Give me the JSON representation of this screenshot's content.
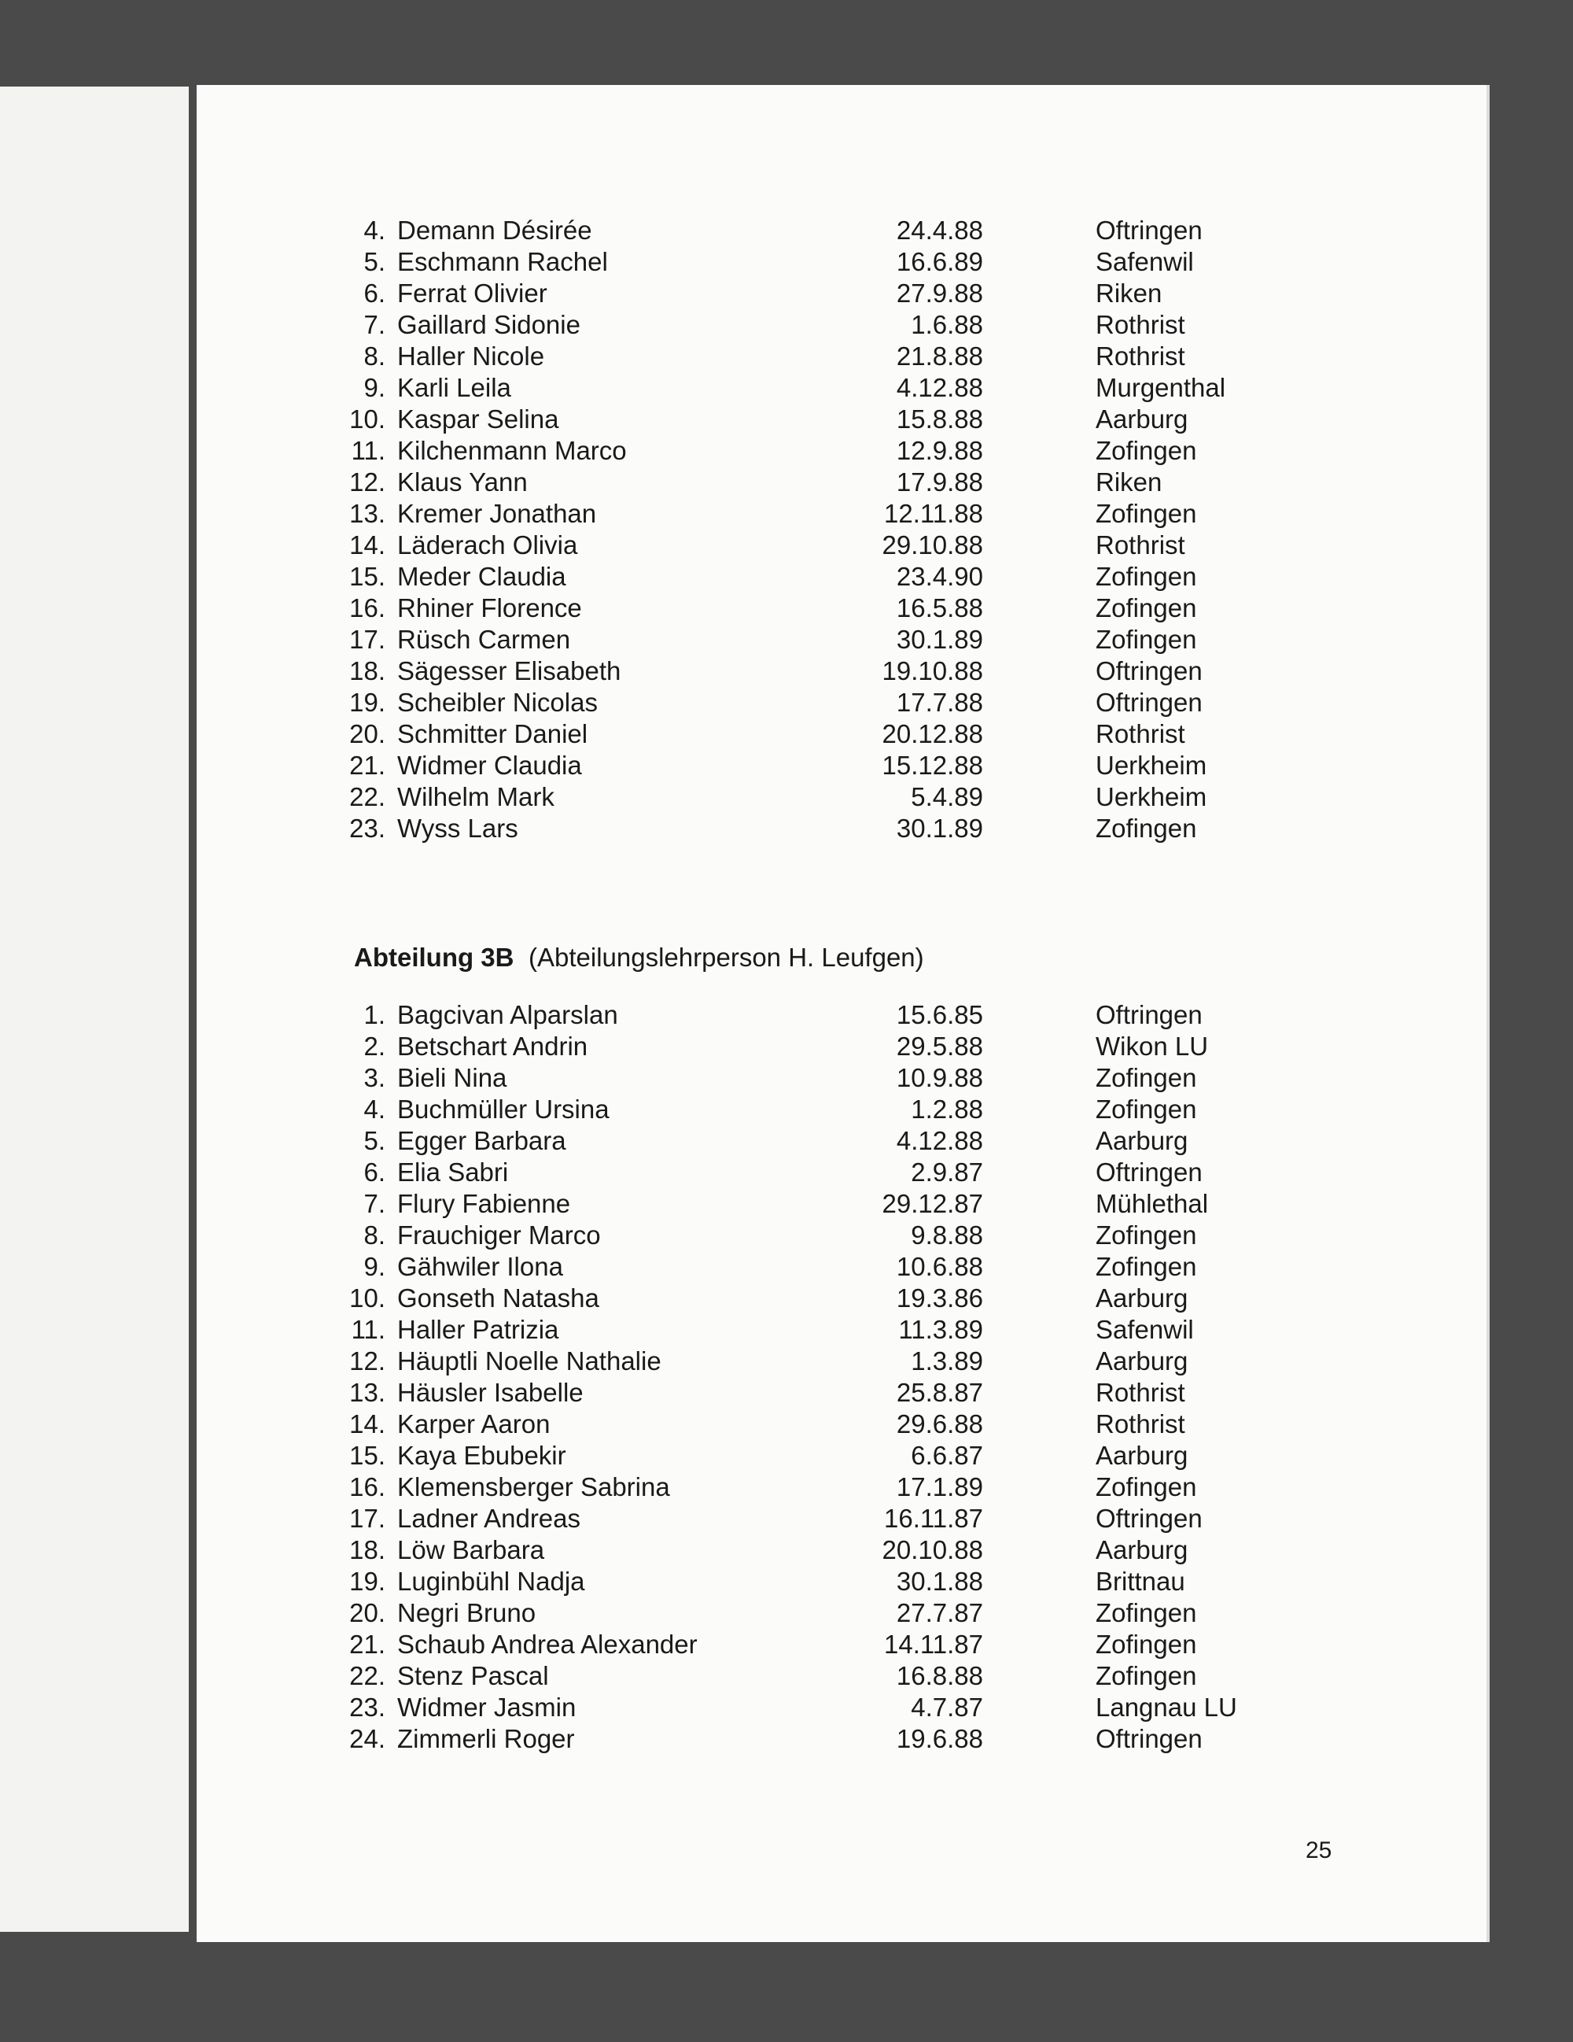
{
  "sections": [
    {
      "rows": [
        [
          "4.",
          "Demann Désirée",
          "24.4.88",
          "Oftringen"
        ],
        [
          "5.",
          "Eschmann Rachel",
          "16.6.89",
          "Safenwil"
        ],
        [
          "6.",
          "Ferrat Olivier",
          "27.9.88",
          "Riken"
        ],
        [
          "7.",
          "Gaillard Sidonie",
          "1.6.88",
          "Rothrist"
        ],
        [
          "8.",
          "Haller Nicole",
          "21.8.88",
          "Rothrist"
        ],
        [
          "9.",
          "Karli Leila",
          "4.12.88",
          "Murgenthal"
        ],
        [
          "10.",
          "Kaspar Selina",
          "15.8.88",
          "Aarburg"
        ],
        [
          "11.",
          "Kilchenmann Marco",
          "12.9.88",
          "Zofingen"
        ],
        [
          "12.",
          "Klaus Yann",
          "17.9.88",
          "Riken"
        ],
        [
          "13.",
          "Kremer Jonathan",
          "12.11.88",
          "Zofingen"
        ],
        [
          "14.",
          "Läderach Olivia",
          "29.10.88",
          "Rothrist"
        ],
        [
          "15.",
          "Meder Claudia",
          "23.4.90",
          "Zofingen"
        ],
        [
          "16.",
          "Rhiner Florence",
          "16.5.88",
          "Zofingen"
        ],
        [
          "17.",
          "Rüsch Carmen",
          "30.1.89",
          "Zofingen"
        ],
        [
          "18.",
          "Sägesser Elisabeth",
          "19.10.88",
          "Oftringen"
        ],
        [
          "19.",
          "Scheibler Nicolas",
          "17.7.88",
          "Oftringen"
        ],
        [
          "20.",
          "Schmitter Daniel",
          "20.12.88",
          "Rothrist"
        ],
        [
          "21.",
          "Widmer Claudia",
          "15.12.88",
          "Uerkheim"
        ],
        [
          "22.",
          "Wilhelm Mark",
          "5.4.89",
          "Uerkheim"
        ],
        [
          "23.",
          "Wyss Lars",
          "30.1.89",
          "Zofingen"
        ]
      ]
    },
    {
      "heading": "Abteilung 3B",
      "subheading": "(Abteilungslehrperson H. Leufgen)",
      "rows": [
        [
          "1.",
          "Bagcivan Alparslan",
          "15.6.85",
          "Oftringen"
        ],
        [
          "2.",
          "Betschart Andrin",
          "29.5.88",
          "Wikon LU"
        ],
        [
          "3.",
          "Bieli Nina",
          "10.9.88",
          "Zofingen"
        ],
        [
          "4.",
          "Buchmüller Ursina",
          "1.2.88",
          "Zofingen"
        ],
        [
          "5.",
          "Egger Barbara",
          "4.12.88",
          "Aarburg"
        ],
        [
          "6.",
          "Elia Sabri",
          "2.9.87",
          "Oftringen"
        ],
        [
          "7.",
          "Flury Fabienne",
          "29.12.87",
          "Mühlethal"
        ],
        [
          "8.",
          "Frauchiger Marco",
          "9.8.88",
          "Zofingen"
        ],
        [
          "9.",
          "Gähwiler Ilona",
          "10.6.88",
          "Zofingen"
        ],
        [
          "10.",
          "Gonseth Natasha",
          "19.3.86",
          "Aarburg"
        ],
        [
          "11.",
          "Haller Patrizia",
          "11.3.89",
          "Safenwil"
        ],
        [
          "12.",
          "Häuptli Noelle Nathalie",
          "1.3.89",
          "Aarburg"
        ],
        [
          "13.",
          "Häusler Isabelle",
          "25.8.87",
          "Rothrist"
        ],
        [
          "14.",
          "Karper Aaron",
          "29.6.88",
          "Rothrist"
        ],
        [
          "15.",
          "Kaya Ebubekir",
          "6.6.87",
          "Aarburg"
        ],
        [
          "16.",
          "Klemensberger Sabrina",
          "17.1.89",
          "Zofingen"
        ],
        [
          "17.",
          "Ladner Andreas",
          "16.11.87",
          "Oftringen"
        ],
        [
          "18.",
          "Löw Barbara",
          "20.10.88",
          "Aarburg"
        ],
        [
          "19.",
          "Luginbühl Nadja",
          "30.1.88",
          "Brittnau"
        ],
        [
          "20.",
          "Negri Bruno",
          "27.7.87",
          "Zofingen"
        ],
        [
          "21.",
          "Schaub Andrea Alexander",
          "14.11.87",
          "Zofingen"
        ],
        [
          "22.",
          "Stenz Pascal",
          "16.8.88",
          "Zofingen"
        ],
        [
          "23.",
          "Widmer Jasmin",
          "4.7.87",
          "Langnau LU"
        ],
        [
          "24.",
          "Zimmerli Roger",
          "19.6.88",
          "Oftringen"
        ]
      ]
    }
  ],
  "page_number": "25"
}
